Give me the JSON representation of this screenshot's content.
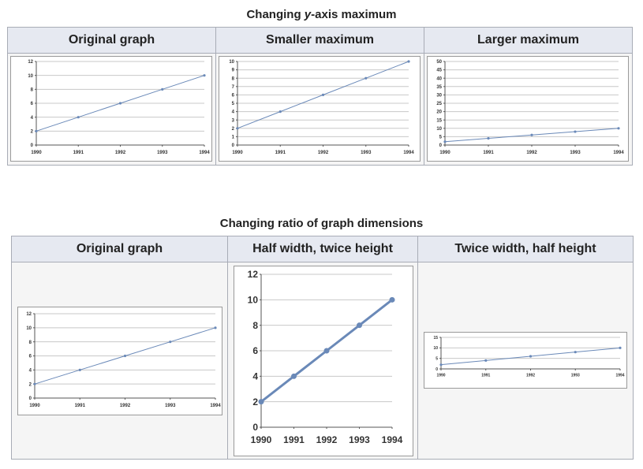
{
  "section1": {
    "title_prefix": "Changing ",
    "title_em": "y",
    "title_suffix": "-axis maximum",
    "headers": [
      "Original graph",
      "Smaller maximum",
      "Larger maximum"
    ]
  },
  "section2": {
    "title": "Changing ratio of graph dimensions",
    "headers": [
      "Original graph",
      "Half width, twice height",
      "Twice width, half height"
    ]
  },
  "colors": {
    "line": "#6a89b8",
    "grid": "#c8c8c8",
    "header_bg": "#e6e9f1"
  },
  "chart_data": [
    {
      "type": "line",
      "categories": [
        "1990",
        "1991",
        "1992",
        "1993",
        "1994"
      ],
      "values": [
        2,
        4,
        6,
        8,
        10
      ],
      "ylim": [
        0,
        12
      ],
      "yticks": [
        0,
        2,
        4,
        6,
        8,
        10,
        12
      ],
      "grid": true
    },
    {
      "type": "line",
      "categories": [
        "1990",
        "1991",
        "1992",
        "1993",
        "1994"
      ],
      "values": [
        2,
        4,
        6,
        8,
        10
      ],
      "ylim": [
        0,
        10
      ],
      "yticks": [
        0,
        1,
        2,
        3,
        4,
        5,
        6,
        7,
        8,
        9,
        10
      ],
      "grid": true
    },
    {
      "type": "line",
      "categories": [
        "1990",
        "1991",
        "1992",
        "1993",
        "1994"
      ],
      "values": [
        2,
        4,
        6,
        8,
        10
      ],
      "ylim": [
        0,
        50
      ],
      "yticks": [
        0,
        5,
        10,
        15,
        20,
        25,
        30,
        35,
        40,
        45,
        50
      ],
      "grid": true
    },
    {
      "type": "line",
      "categories": [
        "1990",
        "1991",
        "1992",
        "1993",
        "1994"
      ],
      "values": [
        2,
        4,
        6,
        8,
        10
      ],
      "ylim": [
        0,
        12
      ],
      "yticks": [
        0,
        2,
        4,
        6,
        8,
        10,
        12
      ],
      "grid": true
    },
    {
      "type": "line",
      "categories": [
        "1990",
        "1991",
        "1992",
        "1993",
        "1994"
      ],
      "values": [
        2,
        4,
        6,
        8,
        10
      ],
      "ylim": [
        0,
        12
      ],
      "yticks": [
        0,
        2,
        4,
        6,
        8,
        10,
        12
      ],
      "grid": true
    },
    {
      "type": "line",
      "categories": [
        "1990",
        "1991",
        "1992",
        "1993",
        "1994"
      ],
      "values": [
        2,
        4,
        6,
        8,
        10
      ],
      "ylim": [
        0,
        15
      ],
      "yticks": [
        0,
        5,
        10,
        15
      ],
      "grid": true
    }
  ]
}
